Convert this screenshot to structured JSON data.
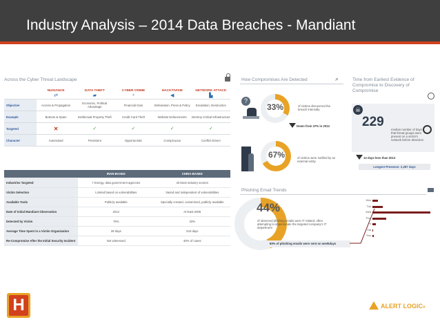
{
  "slide_title": "Industry Analysis – 2014 Data Breaches - Mandiant",
  "threat_landscape": {
    "title": "Across the Cyber Threat Landscape",
    "columns": [
      "NUISANCE",
      "DATA THEFT",
      "CYBER CRIME",
      "HACKTIVISM",
      "NETWORK ATTACK"
    ],
    "rows": [
      {
        "label": "Objective",
        "cells": [
          "Access & Propagation",
          "Economic, Political Advantage",
          "Financial Gain",
          "Defamation, Press & Policy",
          "Escalation, Destruction"
        ]
      },
      {
        "label": "Example",
        "cells": [
          "Botnets & Spam",
          "Intellectual Property Theft",
          "Credit Card Theft",
          "Website Defacements",
          "Destroy Critical Infrastructure"
        ]
      },
      {
        "label": "Targeted",
        "cells": [
          "✕",
          "✓",
          "✓",
          "✓",
          "✓"
        ]
      },
      {
        "label": "Character",
        "cells": [
          "Automated",
          "Persistent",
          "Opportunistic",
          "Conspicuous",
          "Conflict Driven"
        ]
      }
    ]
  },
  "comparison": {
    "headers": [
      "",
      "IRAN-BASED",
      "CHINA-BASED"
    ],
    "rows": [
      {
        "label": "Industries Targeted",
        "iran": "7 Energy, data government agencies",
        "china": "33 Most industry sectors"
      },
      {
        "label": "Victim Selection",
        "iran": "Limited based on vulnerabilities",
        "china": "Varied and independent of vulnerabilities"
      },
      {
        "label": "Available Tools",
        "iran": "Publicly available",
        "china": "Specially created, customized, publicly available"
      },
      {
        "label": "Date of Initial Mandiant Observation",
        "iran": "2012",
        "china": "At least 2006"
      },
      {
        "label": "Detected by Victim",
        "iran": "75%",
        "china": "33%"
      },
      {
        "label": "Average Time Spent in a Victim Organization",
        "iran": "28 days",
        "china": "243 days"
      },
      {
        "label": "Re-Compromise After the Initial Security Incident",
        "iran": "Not witnessed",
        "china": "40% of cases"
      }
    ]
  },
  "compromises": {
    "title": "How Compromises Are Detected",
    "internal_pct": "33%",
    "internal_pct_value": 33,
    "internal_text": "of victims discovered the breach internally",
    "internal_change": "Down from 37% in 2012",
    "external_pct": "67%",
    "external_pct_value": 67,
    "external_text": "of victims were notified by an external entity"
  },
  "time_evidence": {
    "title": "Time from Earliest Evidence of Compromise to Discovery of Compromise",
    "days": "229",
    "days_text": "median number of days that threat groups were present on a victim's network before detection",
    "change": "14 days less than 2012",
    "longest": "Longest Presence: 2,287 days"
  },
  "phishing": {
    "title": "Phishing Email Trends",
    "pct": "44%",
    "pct_value": 44,
    "text": "of observed phishing emails were IT related, often attempting to impersonate the targeted company's IT department",
    "footer": "93% of phishing emails were sent on weekdays",
    "days": [
      "Mon",
      "Tue",
      "Wed",
      "Thur",
      "Fri",
      "Sat",
      "Sun"
    ],
    "day_values": [
      9,
      18,
      100,
      24,
      6,
      1,
      2
    ]
  },
  "colors": {
    "accent": "#e8a327",
    "title_bg": "#3f3f3f",
    "stripe": "#d2411e",
    "bar": "#7a1c1c"
  },
  "brand": {
    "name": "ALERT LOGIC",
    "symbol": "®"
  }
}
